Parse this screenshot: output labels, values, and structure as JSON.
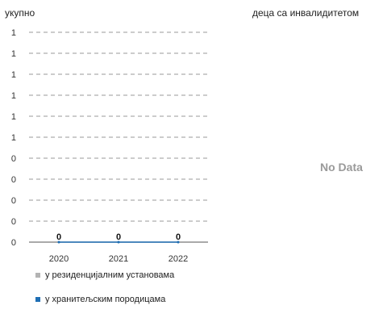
{
  "left_panel": {
    "title": "укупно"
  },
  "right_panel": {
    "title": "деца са инвалидитетом",
    "no_data_text": "No Data"
  },
  "chart_data": {
    "type": "line",
    "categories": [
      "2020",
      "2021",
      "2022"
    ],
    "y_tick_labels": [
      "0",
      "0",
      "0",
      "0",
      "0",
      "1",
      "1",
      "1",
      "1",
      "1",
      "1"
    ],
    "ylim": [
      0,
      1
    ],
    "grid": true,
    "series": [
      {
        "name": "у резиденцијалним установама",
        "color": "#b3b3b3",
        "values": [
          0,
          0,
          0
        ]
      },
      {
        "name": "у хранитељским породицама",
        "color": "#1f6fb4",
        "values": [
          0,
          0,
          0
        ]
      }
    ],
    "data_labels": [
      "0",
      "0",
      "0"
    ],
    "legend_position": "bottom-left"
  }
}
